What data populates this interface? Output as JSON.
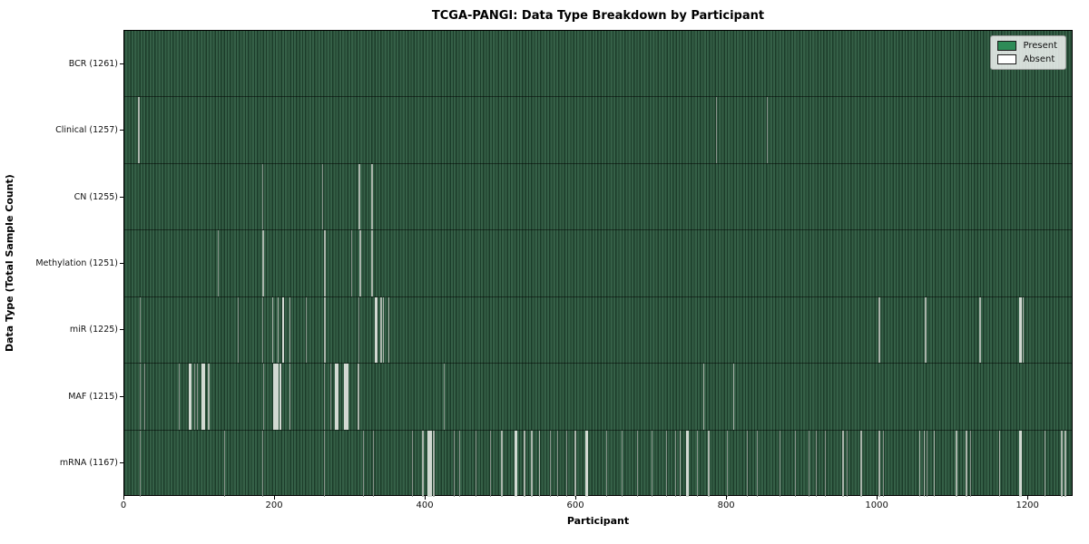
{
  "figure": {
    "title": "TCGA-PANGI: Data Type Breakdown by Participant"
  },
  "chart_data": {
    "type": "heatmap",
    "title": "TCGA-PANGI: Data Type Breakdown by Participant",
    "xlabel": "Participant",
    "ylabel": "Data Type (Total Sample Count)",
    "x_ticks": [
      0,
      200,
      400,
      600,
      800,
      1000,
      1200
    ],
    "x_range": [
      0,
      1260
    ],
    "total_participants": 1261,
    "grid": false,
    "legend_position": "upper right",
    "present_color": "#2e8b57",
    "absent_color": "#ffffff",
    "legend": [
      {
        "label": "Present",
        "color": "#2e8b57"
      },
      {
        "label": "Absent",
        "color": "#ffffff"
      }
    ],
    "rows": [
      {
        "label": "BCR",
        "total": 1261,
        "tick": "BCR (1261)",
        "absent_count": 0,
        "absent_runs": []
      },
      {
        "label": "Clinical",
        "total": 1257,
        "tick": "Clinical (1257)",
        "absent_count": 4,
        "absent_runs": [
          [
            18,
            2
          ],
          [
            785,
            1
          ],
          [
            853,
            1
          ]
        ]
      },
      {
        "label": "CN",
        "total": 1255,
        "tick": "CN (1255)",
        "absent_count": 6,
        "absent_runs": [
          [
            183,
            1
          ],
          [
            263,
            1
          ],
          [
            311,
            2
          ],
          [
            328,
            2
          ]
        ]
      },
      {
        "label": "Methylation",
        "total": 1251,
        "tick": "Methylation (1251)",
        "absent_count": 10,
        "absent_runs": [
          [
            124,
            1
          ],
          [
            183,
            2
          ],
          [
            265,
            2
          ],
          [
            301,
            1
          ],
          [
            312,
            2
          ],
          [
            328,
            2
          ]
        ]
      },
      {
        "label": "miR",
        "total": 1225,
        "tick": "miR (1225)",
        "absent_count": 36,
        "absent_runs": [
          [
            20,
            1
          ],
          [
            150,
            1
          ],
          [
            183,
            1
          ],
          [
            196,
            2
          ],
          [
            203,
            2
          ],
          [
            209,
            3
          ],
          [
            219,
            2
          ],
          [
            241,
            1
          ],
          [
            265,
            2
          ],
          [
            311,
            1
          ],
          [
            333,
            3
          ],
          [
            340,
            2
          ],
          [
            343,
            2
          ],
          [
            350,
            2
          ],
          [
            1001,
            2
          ],
          [
            1063,
            2
          ],
          [
            1135,
            2
          ],
          [
            1188,
            3
          ],
          [
            1192,
            2
          ]
        ]
      },
      {
        "label": "MAF",
        "total": 1215,
        "tick": "MAF (1215)",
        "absent_count": 46,
        "absent_runs": [
          [
            20,
            1
          ],
          [
            27,
            1
          ],
          [
            72,
            1
          ],
          [
            86,
            3
          ],
          [
            93,
            1
          ],
          [
            96,
            1
          ],
          [
            102,
            5
          ],
          [
            111,
            2
          ],
          [
            184,
            1
          ],
          [
            198,
            7
          ],
          [
            206,
            3
          ],
          [
            219,
            2
          ],
          [
            265,
            1
          ],
          [
            274,
            1
          ],
          [
            280,
            4
          ],
          [
            292,
            5
          ],
          [
            310,
            2
          ],
          [
            424,
            1
          ],
          [
            768,
            2
          ],
          [
            808,
            2
          ]
        ]
      },
      {
        "label": "mRNA",
        "total": 1167,
        "tick": "mRNA (1167)",
        "absent_count": 94,
        "absent_runs": [
          [
            20,
            1
          ],
          [
            133,
            1
          ],
          [
            183,
            1
          ],
          [
            265,
            1
          ],
          [
            317,
            1
          ],
          [
            330,
            1
          ],
          [
            382,
            1
          ],
          [
            395,
            2
          ],
          [
            402,
            6
          ],
          [
            410,
            2
          ],
          [
            437,
            1
          ],
          [
            445,
            1
          ],
          [
            466,
            1
          ],
          [
            485,
            1
          ],
          [
            500,
            2
          ],
          [
            518,
            4
          ],
          [
            530,
            2
          ],
          [
            540,
            2
          ],
          [
            550,
            2
          ],
          [
            565,
            1
          ],
          [
            574,
            1
          ],
          [
            587,
            1
          ],
          [
            598,
            2
          ],
          [
            612,
            3
          ],
          [
            640,
            1
          ],
          [
            660,
            1
          ],
          [
            680,
            1
          ],
          [
            700,
            1
          ],
          [
            719,
            1
          ],
          [
            731,
            1
          ],
          [
            737,
            2
          ],
          [
            746,
            3
          ],
          [
            760,
            1
          ],
          [
            775,
            2
          ],
          [
            800,
            1
          ],
          [
            826,
            1
          ],
          [
            840,
            1
          ],
          [
            870,
            1
          ],
          [
            890,
            1
          ],
          [
            908,
            1
          ],
          [
            918,
            1
          ],
          [
            930,
            1
          ],
          [
            953,
            2
          ],
          [
            959,
            1
          ],
          [
            977,
            2
          ],
          [
            1001,
            2
          ],
          [
            1007,
            1
          ],
          [
            1055,
            2
          ],
          [
            1061,
            2
          ],
          [
            1065,
            1
          ],
          [
            1074,
            2
          ],
          [
            1104,
            2
          ],
          [
            1117,
            2
          ],
          [
            1123,
            1
          ],
          [
            1161,
            2
          ],
          [
            1188,
            3
          ],
          [
            1221,
            2
          ],
          [
            1243,
            2
          ],
          [
            1248,
            2
          ]
        ]
      }
    ]
  }
}
